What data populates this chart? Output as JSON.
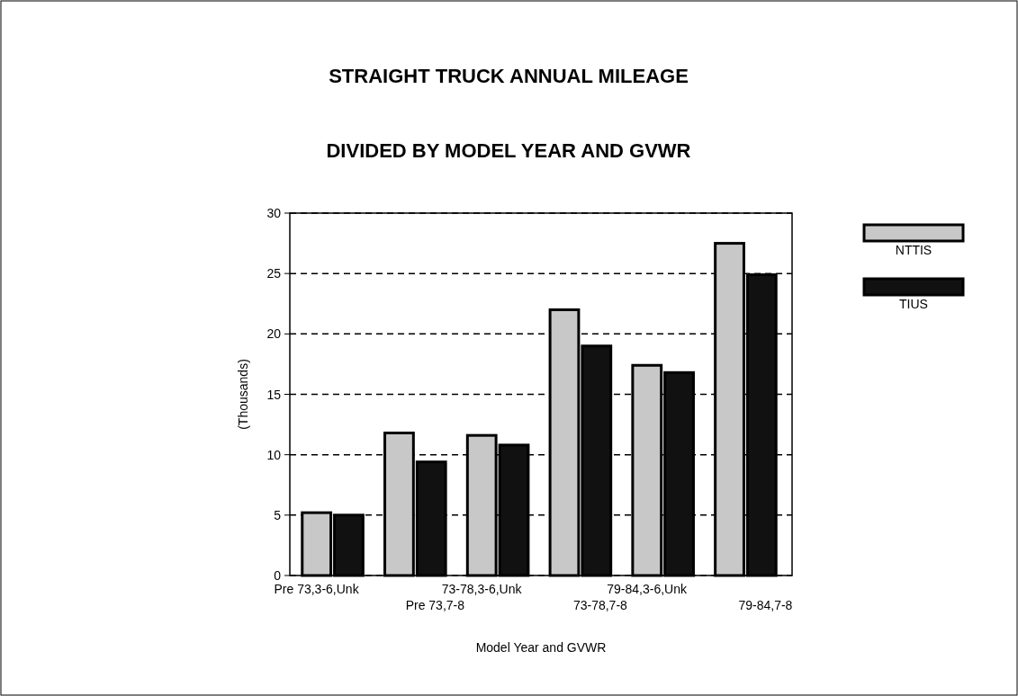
{
  "chart_data": {
    "type": "bar",
    "title": "STRAIGHT TRUCK ANNUAL MILEAGE",
    "subtitle": "DIVIDED BY MODEL YEAR AND GVWR",
    "xlabel": "Model Year and GVWR",
    "ylabel": "(Thousands)",
    "categories": [
      "Pre 73,3-6,Unk",
      "Pre 73,7-8",
      "73-78,3-6,Unk",
      "73-78,7-8",
      "79-84,3-6,Unk",
      "79-84,7-8"
    ],
    "series": [
      {
        "name": "NTTIS",
        "color": "#c8c8c8",
        "values": [
          5.2,
          11.8,
          11.6,
          22,
          17.4,
          27.5
        ]
      },
      {
        "name": "TIUS",
        "color": "#111111",
        "values": [
          5.0,
          9.4,
          10.8,
          19,
          16.8,
          24.9
        ]
      }
    ],
    "ylim": [
      0,
      30
    ],
    "yticks": [
      0,
      5,
      10,
      15,
      20,
      25,
      30
    ],
    "grid": "y",
    "legend": "top right"
  }
}
